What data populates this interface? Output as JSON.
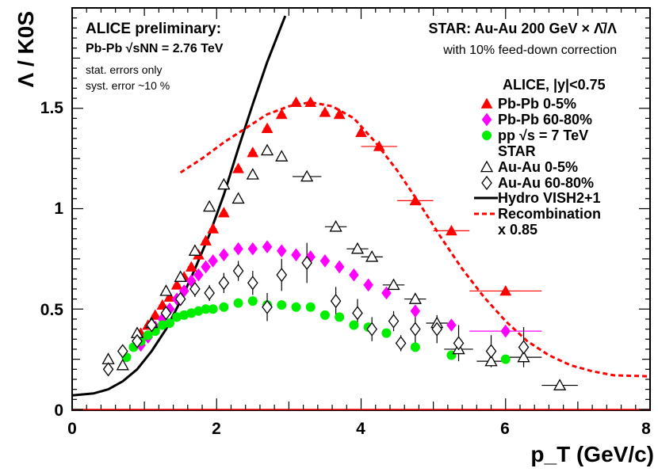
{
  "chart_data": {
    "type": "scatter",
    "xlabel": "p_T (GeV/c)",
    "ylabel": "Λ / K0S",
    "xlim": [
      0,
      8
    ],
    "ylim": [
      0,
      2.0
    ],
    "xticks": [
      "0",
      "2",
      "4",
      "6",
      "8"
    ],
    "yticks": [
      "0",
      "0.5",
      "1",
      "1.5"
    ],
    "annotations": {
      "alice_prelim": "ALICE preliminary:",
      "pbpb_energy": "Pb-Pb √sNN = 2.76 TeV",
      "stat_errors": "stat. errors only",
      "syst_errors": "syst. error ~10 %",
      "star_title": "STAR: Au-Au 200 GeV × Λ̄/Λ",
      "star_note": "with 10% feed-down correction"
    },
    "legend": {
      "alice_header": "ALICE, |y|<0.75",
      "pbpb_central": "Pb-Pb 0-5%",
      "pbpb_peripheral": "Pb-Pb 60-80%",
      "pp": "pp √s = 7 TeV",
      "star_header": "STAR",
      "auau_central": "Au-Au 0-5%",
      "auau_peripheral": "Au-Au 60-80%",
      "hydro": "Hydro VISH2+1",
      "recomb_line1": "Recombination",
      "recomb_line2": "x 0.85"
    },
    "colors": {
      "pbpb_central": "#ff0000",
      "pbpb_peripheral": "#ff00ff",
      "pp": "#00ee00",
      "star": "#000000",
      "hydro": "#000000",
      "recombination": "#ff0000"
    },
    "series": [
      {
        "name": "Pb-Pb 0-5%",
        "marker": "triangle-filled",
        "points": [
          {
            "x": 0.95,
            "y": 0.38
          },
          {
            "x": 1.05,
            "y": 0.42
          },
          {
            "x": 1.15,
            "y": 0.47
          },
          {
            "x": 1.25,
            "y": 0.52
          },
          {
            "x": 1.35,
            "y": 0.56
          },
          {
            "x": 1.45,
            "y": 0.62
          },
          {
            "x": 1.55,
            "y": 0.66
          },
          {
            "x": 1.65,
            "y": 0.71
          },
          {
            "x": 1.75,
            "y": 0.77
          },
          {
            "x": 1.85,
            "y": 0.84
          },
          {
            "x": 1.95,
            "y": 0.9
          },
          {
            "x": 2.1,
            "y": 0.98
          },
          {
            "x": 2.3,
            "y": 1.2
          },
          {
            "x": 2.5,
            "y": 1.28
          },
          {
            "x": 2.7,
            "y": 1.4
          },
          {
            "x": 2.9,
            "y": 1.47
          },
          {
            "x": 3.1,
            "y": 1.53
          },
          {
            "x": 3.3,
            "y": 1.53
          },
          {
            "x": 3.5,
            "y": 1.48
          },
          {
            "x": 3.7,
            "y": 1.47
          },
          {
            "x": 4.0,
            "y": 1.38
          },
          {
            "x": 4.25,
            "y": 1.31,
            "xerr": 0.25
          },
          {
            "x": 4.75,
            "y": 1.04,
            "xerr": 0.25
          },
          {
            "x": 5.25,
            "y": 0.89,
            "xerr": 0.25
          },
          {
            "x": 6.0,
            "y": 0.59,
            "xerr": 0.5
          }
        ]
      },
      {
        "name": "Pb-Pb 60-80%",
        "marker": "diamond-filled",
        "points": [
          {
            "x": 0.95,
            "y": 0.32
          },
          {
            "x": 1.05,
            "y": 0.36
          },
          {
            "x": 1.15,
            "y": 0.41
          },
          {
            "x": 1.25,
            "y": 0.45
          },
          {
            "x": 1.35,
            "y": 0.5
          },
          {
            "x": 1.45,
            "y": 0.55
          },
          {
            "x": 1.55,
            "y": 0.59
          },
          {
            "x": 1.65,
            "y": 0.64
          },
          {
            "x": 1.75,
            "y": 0.67
          },
          {
            "x": 1.85,
            "y": 0.71
          },
          {
            "x": 1.95,
            "y": 0.74
          },
          {
            "x": 2.1,
            "y": 0.77
          },
          {
            "x": 2.3,
            "y": 0.8
          },
          {
            "x": 2.5,
            "y": 0.8
          },
          {
            "x": 2.7,
            "y": 0.81
          },
          {
            "x": 2.9,
            "y": 0.79
          },
          {
            "x": 3.1,
            "y": 0.77
          },
          {
            "x": 3.3,
            "y": 0.76
          },
          {
            "x": 3.5,
            "y": 0.74
          },
          {
            "x": 3.7,
            "y": 0.71
          },
          {
            "x": 3.9,
            "y": 0.67
          },
          {
            "x": 4.1,
            "y": 0.62
          },
          {
            "x": 4.35,
            "y": 0.58
          },
          {
            "x": 4.75,
            "y": 0.49
          },
          {
            "x": 5.25,
            "y": 0.42
          },
          {
            "x": 6.0,
            "y": 0.39,
            "xerr": 0.5
          }
        ]
      },
      {
        "name": "pp √s = 7 TeV",
        "marker": "circle-filled",
        "points": [
          {
            "x": 0.75,
            "y": 0.26
          },
          {
            "x": 0.85,
            "y": 0.31
          },
          {
            "x": 0.95,
            "y": 0.34
          },
          {
            "x": 1.05,
            "y": 0.37
          },
          {
            "x": 1.15,
            "y": 0.39
          },
          {
            "x": 1.25,
            "y": 0.42
          },
          {
            "x": 1.35,
            "y": 0.43
          },
          {
            "x": 1.45,
            "y": 0.46
          },
          {
            "x": 1.55,
            "y": 0.47
          },
          {
            "x": 1.65,
            "y": 0.48
          },
          {
            "x": 1.75,
            "y": 0.49
          },
          {
            "x": 1.85,
            "y": 0.5
          },
          {
            "x": 1.95,
            "y": 0.5
          },
          {
            "x": 2.1,
            "y": 0.51
          },
          {
            "x": 2.3,
            "y": 0.53
          },
          {
            "x": 2.5,
            "y": 0.54
          },
          {
            "x": 2.7,
            "y": 0.52
          },
          {
            "x": 2.9,
            "y": 0.52
          },
          {
            "x": 3.1,
            "y": 0.51
          },
          {
            "x": 3.3,
            "y": 0.51
          },
          {
            "x": 3.5,
            "y": 0.47
          },
          {
            "x": 3.7,
            "y": 0.46
          },
          {
            "x": 3.9,
            "y": 0.42
          },
          {
            "x": 4.1,
            "y": 0.41
          },
          {
            "x": 4.35,
            "y": 0.38
          },
          {
            "x": 4.75,
            "y": 0.31
          },
          {
            "x": 5.25,
            "y": 0.27
          },
          {
            "x": 6.0,
            "y": 0.25
          }
        ]
      },
      {
        "name": "Au-Au 0-5%",
        "marker": "triangle-open",
        "points": [
          {
            "x": 0.5,
            "y": 0.25
          },
          {
            "x": 0.7,
            "y": 0.22
          },
          {
            "x": 0.9,
            "y": 0.38
          },
          {
            "x": 1.1,
            "y": 0.43
          },
          {
            "x": 1.3,
            "y": 0.59
          },
          {
            "x": 1.5,
            "y": 0.66
          },
          {
            "x": 1.7,
            "y": 0.79
          },
          {
            "x": 1.9,
            "y": 1.01
          },
          {
            "x": 2.1,
            "y": 1.12
          },
          {
            "x": 2.3,
            "y": 1.05
          },
          {
            "x": 2.5,
            "y": 1.17
          },
          {
            "x": 2.7,
            "y": 1.29
          },
          {
            "x": 2.9,
            "y": 1.26
          },
          {
            "x": 3.25,
            "y": 1.16,
            "xerr": 0.2
          },
          {
            "x": 3.65,
            "y": 0.91,
            "xerr": 0.15
          },
          {
            "x": 3.95,
            "y": 0.8,
            "xerr": 0.15
          },
          {
            "x": 4.15,
            "y": 0.76,
            "xerr": 0.15
          },
          {
            "x": 4.45,
            "y": 0.62,
            "xerr": 0.15
          },
          {
            "x": 4.75,
            "y": 0.55,
            "xerr": 0.15
          },
          {
            "x": 5.05,
            "y": 0.43,
            "xerr": 0.15
          },
          {
            "x": 5.35,
            "y": 0.3,
            "xerr": 0.2
          },
          {
            "x": 5.8,
            "y": 0.24,
            "xerr": 0.2
          },
          {
            "x": 6.25,
            "y": 0.26,
            "xerr": 0.25
          },
          {
            "x": 6.75,
            "y": 0.12,
            "xerr": 0.25
          }
        ]
      },
      {
        "name": "Au-Au 60-80%",
        "marker": "diamond-open",
        "points": [
          {
            "x": 0.5,
            "y": 0.2
          },
          {
            "x": 0.7,
            "y": 0.29
          },
          {
            "x": 0.9,
            "y": 0.34
          },
          {
            "x": 1.1,
            "y": 0.42
          },
          {
            "x": 1.3,
            "y": 0.48,
            "yerr": 0.03
          },
          {
            "x": 1.5,
            "y": 0.55,
            "yerr": 0.03
          },
          {
            "x": 1.7,
            "y": 0.6,
            "yerr": 0.04
          },
          {
            "x": 1.9,
            "y": 0.58,
            "yerr": 0.04
          },
          {
            "x": 2.1,
            "y": 0.63,
            "yerr": 0.05
          },
          {
            "x": 2.3,
            "y": 0.69,
            "yerr": 0.05
          },
          {
            "x": 2.5,
            "y": 0.63,
            "yerr": 0.06
          },
          {
            "x": 2.7,
            "y": 0.51,
            "yerr": 0.07
          },
          {
            "x": 2.9,
            "y": 0.67,
            "yerr": 0.08
          },
          {
            "x": 3.25,
            "y": 0.73,
            "yerr": 0.1
          },
          {
            "x": 3.65,
            "y": 0.54,
            "yerr": 0.07
          },
          {
            "x": 3.95,
            "y": 0.48,
            "yerr": 0.07
          },
          {
            "x": 4.15,
            "y": 0.4,
            "yerr": 0.06
          },
          {
            "x": 4.45,
            "y": 0.44,
            "yerr": 0.05
          },
          {
            "x": 4.55,
            "y": 0.33,
            "yerr": 0.04
          },
          {
            "x": 4.75,
            "y": 0.4,
            "yerr": 0.07
          },
          {
            "x": 5.05,
            "y": 0.4,
            "yerr": 0.07
          },
          {
            "x": 5.35,
            "y": 0.33,
            "yerr": 0.09
          },
          {
            "x": 5.8,
            "y": 0.29,
            "yerr": 0.08
          },
          {
            "x": 6.25,
            "y": 0.31,
            "yerr": 0.1
          }
        ]
      }
    ],
    "curves": [
      {
        "name": "Hydro VISH2+1",
        "style": "solid",
        "points": [
          {
            "x": 0,
            "y": 0.07
          },
          {
            "x": 0.3,
            "y": 0.08
          },
          {
            "x": 0.5,
            "y": 0.1
          },
          {
            "x": 0.7,
            "y": 0.14
          },
          {
            "x": 0.9,
            "y": 0.2
          },
          {
            "x": 1.1,
            "y": 0.29
          },
          {
            "x": 1.3,
            "y": 0.4
          },
          {
            "x": 1.5,
            "y": 0.54
          },
          {
            "x": 1.7,
            "y": 0.7
          },
          {
            "x": 1.9,
            "y": 0.87
          },
          {
            "x": 2.1,
            "y": 1.07
          },
          {
            "x": 2.3,
            "y": 1.3
          },
          {
            "x": 2.5,
            "y": 1.52
          },
          {
            "x": 2.7,
            "y": 1.73
          },
          {
            "x": 2.95,
            "y": 1.96
          }
        ]
      },
      {
        "name": "Recombination x 0.85",
        "style": "dashed",
        "points": [
          {
            "x": 1.5,
            "y": 1.18
          },
          {
            "x": 1.8,
            "y": 1.25
          },
          {
            "x": 2.1,
            "y": 1.33
          },
          {
            "x": 2.4,
            "y": 1.4
          },
          {
            "x": 2.7,
            "y": 1.47
          },
          {
            "x": 3.0,
            "y": 1.51
          },
          {
            "x": 3.3,
            "y": 1.53
          },
          {
            "x": 3.6,
            "y": 1.51
          },
          {
            "x": 3.9,
            "y": 1.45
          },
          {
            "x": 4.2,
            "y": 1.33
          },
          {
            "x": 4.5,
            "y": 1.19
          },
          {
            "x": 4.8,
            "y": 1.03
          },
          {
            "x": 5.1,
            "y": 0.86
          },
          {
            "x": 5.4,
            "y": 0.7
          },
          {
            "x": 5.7,
            "y": 0.56
          },
          {
            "x": 6.0,
            "y": 0.44
          },
          {
            "x": 6.3,
            "y": 0.34
          },
          {
            "x": 6.6,
            "y": 0.27
          },
          {
            "x": 6.9,
            "y": 0.22
          },
          {
            "x": 7.2,
            "y": 0.19
          },
          {
            "x": 7.5,
            "y": 0.17
          },
          {
            "x": 8.0,
            "y": 0.165
          }
        ]
      }
    ]
  }
}
